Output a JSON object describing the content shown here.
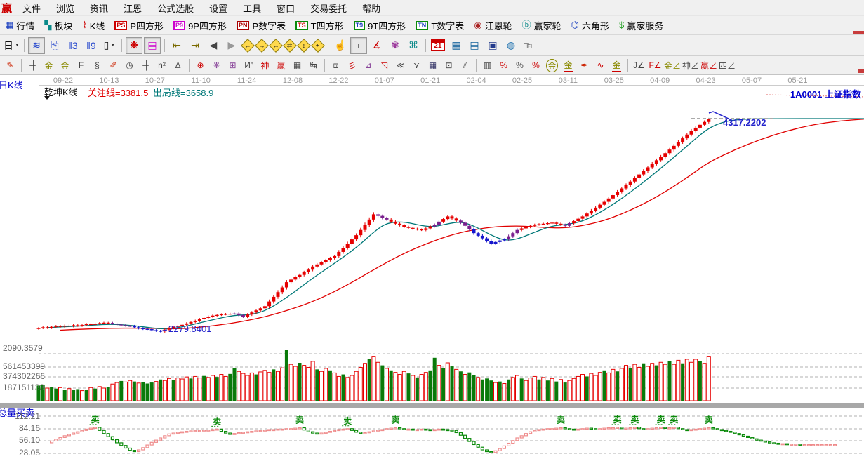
{
  "menu": {
    "logo": "赢",
    "items": [
      {
        "id": "file",
        "label": "文件"
      },
      {
        "id": "browse",
        "label": "浏览"
      },
      {
        "id": "news",
        "label": "资讯"
      },
      {
        "id": "gann",
        "label": "江恩"
      },
      {
        "id": "formula",
        "label": "公式选股"
      },
      {
        "id": "settings",
        "label": "设置"
      },
      {
        "id": "tools",
        "label": "工具"
      },
      {
        "id": "window",
        "label": "窗口"
      },
      {
        "id": "trade",
        "label": "交易委托"
      },
      {
        "id": "help",
        "label": "帮助"
      }
    ]
  },
  "quick_toolbar": {
    "items": [
      {
        "n": "quotes-button",
        "g": "▦",
        "gc": "#1a3fbf",
        "label": "行情"
      },
      {
        "n": "sectors-button",
        "g": "▚",
        "gc": "#0a8a8a",
        "label": "板块"
      },
      {
        "n": "kline-button",
        "g": "⌇",
        "gc": "#cc0000",
        "label": "K线"
      },
      {
        "n": "p-square-button",
        "b": "PS",
        "bc": "#cc0000",
        "label": "P四方形"
      },
      {
        "n": "p9-square-button",
        "b": "P9",
        "bc": "#cc00cc",
        "label": "9P四方形"
      },
      {
        "n": "p-number-button",
        "b": "PN",
        "bc": "#aa0000",
        "label": "P数字表"
      },
      {
        "n": "t-square-button",
        "b": "TS",
        "bc": "#0a8a0a",
        "tc": "#cc0000",
        "label": "T四方形"
      },
      {
        "n": "t9-square-button",
        "b": "T9",
        "bc": "#0a8a0a",
        "tc": "#1a3fbf",
        "label": "9T四方形"
      },
      {
        "n": "t-number-button",
        "b": "TN",
        "bc": "#0a8a0a",
        "tc": "#1a3fbf",
        "label": "T数字表"
      },
      {
        "n": "gann-wheel-button",
        "g": "◉",
        "gc": "#aa2222",
        "label": "江恩轮"
      },
      {
        "n": "winner-wheel-button",
        "g": "ⓑ",
        "gc": "#0a8a8a",
        "label": "赢家轮"
      },
      {
        "n": "hexagon-button",
        "g": "⌬",
        "gc": "#1a3fbf",
        "label": "六角形"
      },
      {
        "n": "winner-service-button",
        "g": "$",
        "gc": "#2aa02a",
        "label": "赢家服务"
      }
    ]
  },
  "icon_toolbar": {
    "items": [
      {
        "n": "period-day-selector",
        "g": "日",
        "c": "#111",
        "dd": 1
      },
      {
        "s": 1
      },
      {
        "n": "zigzag-view-button",
        "g": "≋",
        "c": "#2244cc",
        "pr": 1
      },
      {
        "n": "info-view-button",
        "g": "⎘",
        "c": "#2244cc"
      },
      {
        "n": "bars3-button",
        "g": "‖3",
        "c": "#2244cc"
      },
      {
        "n": "bars9-button",
        "g": "‖9",
        "c": "#2244cc"
      },
      {
        "n": "candle-style-button",
        "g": "▯",
        "c": "#111",
        "dd": 1
      },
      {
        "s": 1
      },
      {
        "n": "chip-distribution-button",
        "g": "❉",
        "c": "#cc0000",
        "pr": 1
      },
      {
        "n": "profile-chart-button",
        "g": "▤",
        "c": "#cc00cc",
        "pr": 1
      },
      {
        "s": 1
      },
      {
        "n": "nav-first-button",
        "g": "⇤",
        "c": "#7a6a00"
      },
      {
        "n": "nav-last-button",
        "g": "⇥",
        "c": "#7a6a00"
      },
      {
        "n": "nav-prev-button",
        "g": "◀",
        "c": "#444"
      },
      {
        "n": "nav-next-button",
        "g": "▶",
        "c": "#999"
      },
      {
        "n": "zoom-left-diamond",
        "dg": "←"
      },
      {
        "n": "zoom-right-diamond",
        "dg": "→"
      },
      {
        "n": "zoom-h-diamond",
        "dg": "↔"
      },
      {
        "n": "zoom-swap-diamond",
        "dg": "⇄"
      },
      {
        "n": "zoom-v-diamond",
        "dg": "↕"
      },
      {
        "n": "zoom-all-diamond",
        "dg": "+"
      },
      {
        "s": 1
      },
      {
        "n": "hand-tool-button",
        "g": "☝",
        "c": "#8a6a4a"
      },
      {
        "n": "crosshair-button",
        "g": "+",
        "c": "#111",
        "pr": 1
      },
      {
        "n": "angle-measure-button",
        "g": "∡",
        "c": "#cc0000"
      },
      {
        "n": "purple-gann-button",
        "g": "✾",
        "c": "#993399"
      },
      {
        "n": "wave-analysis-button",
        "g": "⌘",
        "c": "#0a8a8a"
      },
      {
        "s": 1
      },
      {
        "n": "calendar-button",
        "cal": "21"
      },
      {
        "n": "calculator-button",
        "g": "▦",
        "c": "#16639c"
      },
      {
        "n": "memo-button",
        "g": "▤",
        "c": "#16639c"
      },
      {
        "n": "save-button",
        "g": "▣",
        "c": "#223a8c"
      },
      {
        "n": "web-button",
        "g": "◍",
        "c": "#1a6fae"
      },
      {
        "n": "order-button",
        "g": "℡",
        "c": "#555"
      }
    ]
  },
  "drawing_toolbar": {
    "items": [
      {
        "n": "pen-tool",
        "g": "✎",
        "c": "#cc2200"
      },
      {
        "s": 1
      },
      {
        "n": "tick-ruler-tool",
        "g": "╫",
        "c": "#444"
      },
      {
        "n": "gold-ruler-a-tool",
        "g": "金",
        "c": "#8a8a00"
      },
      {
        "n": "gold-ruler-b-tool",
        "g": "金",
        "c": "#8a8a00"
      },
      {
        "n": "f-ruler-tool",
        "g": "F",
        "c": "#444"
      },
      {
        "n": "spiral-tool",
        "g": "§",
        "c": "#444"
      },
      {
        "n": "marker-pen-tool",
        "g": "✐",
        "c": "#cc2200"
      },
      {
        "n": "time-circle-tool",
        "g": "◷",
        "c": "#444"
      },
      {
        "n": "tick-ruler2-tool",
        "g": "╫",
        "c": "#444"
      },
      {
        "n": "n-squared-tool",
        "g": "n²",
        "c": "#444"
      },
      {
        "n": "mirror-tool",
        "g": "∆",
        "c": "#555"
      },
      {
        "s": 1
      },
      {
        "n": "compass-tool",
        "g": "⊕",
        "c": "#cc0000"
      },
      {
        "n": "star-tool",
        "g": "❋",
        "c": "#884499"
      },
      {
        "n": "star-grid-tool",
        "g": "⊞",
        "c": "#884499"
      },
      {
        "n": "n-quote-tool",
        "g": "И”",
        "c": "#444"
      },
      {
        "n": "shen-tool",
        "g": "神",
        "c": "#cc0000"
      },
      {
        "n": "ying-tool",
        "g": "赢",
        "c": "#cc0000"
      },
      {
        "n": "grid-123-tool",
        "g": "▦",
        "c": "#444"
      },
      {
        "n": "span-arrows-tool",
        "g": "↹",
        "c": "#444"
      },
      {
        "s": 1
      },
      {
        "n": "frame-tool",
        "g": "⧈",
        "c": "#555"
      },
      {
        "n": "gann-fan-tool",
        "g": "彡",
        "c": "#cc0000"
      },
      {
        "n": "fan-box-tool",
        "g": "⊿",
        "c": "#884499"
      },
      {
        "n": "fan-box-red-tool",
        "g": "◹",
        "c": "#cc0000"
      },
      {
        "n": "rays-tool",
        "g": "≪",
        "c": "#444"
      },
      {
        "n": "vee-tool",
        "g": "⋎",
        "c": "#444"
      },
      {
        "n": "dense-grid-tool",
        "g": "▦",
        "c": "#333366"
      },
      {
        "n": "grid-arrow-tool",
        "g": "⊡",
        "c": "#444"
      },
      {
        "n": "parallel-tool",
        "g": "⫽",
        "c": "#444"
      },
      {
        "s": 1
      },
      {
        "n": "scale-chart-tool",
        "g": "▥",
        "c": "#444"
      },
      {
        "n": "percent-line-tool",
        "g": "℅",
        "c": "#cc0000"
      },
      {
        "n": "percent-tool",
        "g": "%",
        "c": "#444"
      },
      {
        "n": "percent-underline-tool",
        "g": "%",
        "c": "#cc0000"
      },
      {
        "n": "gold-circle-tool",
        "g": "金",
        "c": "#8a8a00",
        "cir": 1
      },
      {
        "n": "gold-line-tool",
        "g": "金",
        "c": "#8a8a00",
        "ul": 1
      },
      {
        "n": "flag-pen-tool",
        "g": "✒",
        "c": "#cc2200"
      },
      {
        "n": "gold-wave-tool",
        "g": "∿",
        "c": "#cc0000"
      },
      {
        "n": "gold-line2-tool",
        "g": "金",
        "c": "#8a8a00",
        "ul": 1
      },
      {
        "s": 1
      },
      {
        "n": "j-angle-tool",
        "g": "J∠",
        "c": "#444"
      },
      {
        "n": "f-angle-tool",
        "g": "F∠",
        "c": "#cc0000"
      },
      {
        "n": "gold-angle-tool",
        "g": "金∠",
        "c": "#8a8a00"
      },
      {
        "n": "shen-angle-tool",
        "g": "神∠",
        "c": "#444"
      },
      {
        "n": "ying-angle-tool",
        "g": "赢∠",
        "c": "#cc0000"
      },
      {
        "n": "four-angle-tool",
        "g": "四∠",
        "c": "#444"
      }
    ]
  },
  "chart": {
    "period_label": "日K线",
    "kline_type": "乾坤K线",
    "attention_line": "关注线=3381.5",
    "exit_line": "出局线=3658.9",
    "symbol": "1A0001 上证指数",
    "high_annotation": "4317.2202",
    "low_annotation": "2279.8401",
    "volume_axis_labels": [
      "2090.3579",
      "561453399",
      "374302266",
      "187151133"
    ],
    "indicator_name": "总量买卖",
    "indicator_axis_labels": [
      "112.21",
      "84.16",
      "56.10",
      "28.05"
    ],
    "sell_marker_text": "卖",
    "colors": {
      "up": "#e60000",
      "down": "#1616cc",
      "transition": "#7a1f8e",
      "ma_fast": "#007878",
      "ma_slow": "#e00000",
      "vol_down": "#0a7a0a",
      "ind_up": "#ef8c8c",
      "ind_down": "#0a8a0a",
      "annotation": "#2222cc",
      "date_text": "#999999"
    }
  },
  "chart_data": {
    "type": "candlestick",
    "title": "1A0001 上证指数 日K线 乾坤K线",
    "key_levels": {
      "attention": 3381.5,
      "exit": 3658.9,
      "high": 4317.2202,
      "low": 2279.8401
    },
    "dates": [
      "09-22",
      "10-13",
      "10-27",
      "11-10",
      "11-24",
      "12-08",
      "12-22",
      "01-07",
      "01-21",
      "02-04",
      "02-25",
      "03-11",
      "03-25",
      "04-09",
      "04-23",
      "05-07",
      "05-21"
    ],
    "closes": [
      2310,
      2318,
      2312,
      2322,
      2330,
      2324,
      2334,
      2328,
      2338,
      2332,
      2340,
      2348,
      2342,
      2352,
      2358,
      2362,
      2360,
      2352,
      2344,
      2338,
      2332,
      2330,
      2318,
      2308,
      2302,
      2300,
      2290,
      2284,
      2279,
      2295,
      2310,
      2322,
      2330,
      2342,
      2355,
      2368,
      2380,
      2395,
      2408,
      2420,
      2430,
      2436,
      2442,
      2446,
      2448,
      2450,
      2435,
      2420,
      2440,
      2460,
      2480,
      2500,
      2520,
      2565,
      2610,
      2655,
      2700,
      2750,
      2775,
      2800,
      2820,
      2845,
      2870,
      2900,
      2920,
      2940,
      2960,
      2980,
      3000,
      3040,
      3080,
      3120,
      3160,
      3200,
      3250,
      3300,
      3350,
      3400,
      3385,
      3365,
      3350,
      3330,
      3310,
      3295,
      3280,
      3270,
      3262,
      3255,
      3250,
      3265,
      3285,
      3300,
      3330,
      3355,
      3380,
      3360,
      3340,
      3320,
      3290,
      3255,
      3220,
      3195,
      3170,
      3145,
      3120,
      3135,
      3150,
      3160,
      3190,
      3220,
      3250,
      3265,
      3278,
      3290,
      3300,
      3305,
      3310,
      3315,
      3320,
      3310,
      3300,
      3290,
      3315,
      3335,
      3358,
      3380,
      3408,
      3436,
      3464,
      3492,
      3520,
      3552,
      3584,
      3616,
      3648,
      3680,
      3714,
      3748,
      3782,
      3816,
      3850,
      3884,
      3918,
      3952,
      3986,
      4020,
      4056,
      4092,
      4128,
      4164,
      4200,
      4230,
      4258,
      4285,
      4310
    ],
    "candle_colors": "rrrrrrrrrrrrrrrrrpppppbbbbbbbrrrrrrrrrrrrrrrrppprrrrrrrrrrrrrrrrrrrrrrrrrrrrrrppprrrrrrrrrrpprrrrpppbbbbbbbbppprrrrrrrrrrpprrrrrrrrrrrrrrrrrrrrrrrrrrrrrrrr",
    "volumes": [
      -30,
      -32,
      25,
      -27,
      -24,
      26,
      -22,
      24,
      -21,
      -23,
      20,
      -22,
      26,
      -24,
      28,
      25,
      -27,
      33,
      36,
      -39,
      37,
      40,
      -38,
      35,
      -37,
      -34,
      -36,
      38,
      -42,
      40,
      44,
      -41,
      45,
      43,
      47,
      -44,
      48,
      45,
      -49,
      46,
      50,
      -47,
      52,
      48,
      -53,
      -64,
      58,
      54,
      50,
      55,
      -52,
      57,
      60,
      56,
      -62,
      58,
      65,
      -100,
      72,
      68,
      -75,
      70,
      66,
      78,
      -62,
      58,
      64,
      -60,
      55,
      48,
      -52,
      46,
      50,
      58,
      66,
      74,
      -82,
      88,
      76,
      -70,
      64,
      -60,
      56,
      52,
      58,
      -54,
      50,
      -46,
      52,
      56,
      -60,
      -85,
      70,
      -64,
      75,
      -68,
      62,
      -58,
      52,
      -56,
      -50,
      46,
      -42,
      -44,
      -40,
      36,
      -38,
      34,
      -42,
      46,
      50,
      -44,
      40,
      45,
      48,
      -42,
      46,
      -40,
      44,
      -38,
      42,
      -36,
      40,
      44,
      48,
      52,
      -48,
      54,
      50,
      56,
      -60,
      55,
      62,
      -58,
      64,
      70,
      -64,
      72,
      66,
      -74,
      68,
      74,
      -70,
      76,
      72,
      -78,
      72,
      80,
      -74,
      82,
      76,
      82,
      -78,
      74,
      88
    ],
    "ma_fast_points": [
      [
        2,
        2315
      ],
      [
        10,
        2330
      ],
      [
        16,
        2350
      ],
      [
        22,
        2335
      ],
      [
        28,
        2300
      ],
      [
        32,
        2310
      ],
      [
        40,
        2390
      ],
      [
        45,
        2435
      ],
      [
        48,
        2435
      ],
      [
        52,
        2470
      ],
      [
        57,
        2600
      ],
      [
        63,
        2790
      ],
      [
        68,
        2930
      ],
      [
        73,
        3080
      ],
      [
        77,
        3230
      ],
      [
        80,
        3320
      ],
      [
        84,
        3330
      ],
      [
        88,
        3290
      ],
      [
        91,
        3280
      ],
      [
        94,
        3310
      ],
      [
        97,
        3330
      ],
      [
        100,
        3290
      ],
      [
        104,
        3200
      ],
      [
        107,
        3150
      ],
      [
        110,
        3160
      ],
      [
        114,
        3230
      ],
      [
        118,
        3290
      ],
      [
        121,
        3300
      ],
      [
        125,
        3330
      ],
      [
        130,
        3440
      ],
      [
        135,
        3580
      ],
      [
        140,
        3740
      ],
      [
        145,
        3910
      ],
      [
        150,
        4090
      ],
      [
        154,
        4230
      ],
      [
        158,
        4295
      ],
      [
        162,
        4312
      ],
      [
        166,
        4317
      ],
      [
        190,
        4317
      ]
    ],
    "ma_slow_points": [
      [
        5,
        2290
      ],
      [
        15,
        2310
      ],
      [
        25,
        2310
      ],
      [
        32,
        2300
      ],
      [
        40,
        2330
      ],
      [
        48,
        2380
      ],
      [
        55,
        2450
      ],
      [
        63,
        2560
      ],
      [
        70,
        2700
      ],
      [
        77,
        2870
      ],
      [
        84,
        3030
      ],
      [
        91,
        3150
      ],
      [
        97,
        3230
      ],
      [
        104,
        3280
      ],
      [
        110,
        3290
      ],
      [
        114,
        3280
      ],
      [
        118,
        3270
      ],
      [
        121,
        3270
      ],
      [
        125,
        3290
      ],
      [
        130,
        3340
      ],
      [
        135,
        3420
      ],
      [
        140,
        3520
      ],
      [
        145,
        3640
      ],
      [
        150,
        3780
      ],
      [
        154,
        3900
      ],
      [
        160,
        4020
      ],
      [
        166,
        4120
      ],
      [
        172,
        4200
      ],
      [
        178,
        4260
      ],
      [
        184,
        4295
      ],
      [
        190,
        4312
      ]
    ],
    "indicator": {
      "name": "总量买卖",
      "start_index": 2,
      "axis": [
        112.21,
        84.16,
        56.1,
        28.05
      ],
      "values": [
        52,
        56,
        60,
        64,
        68,
        71,
        74,
        77,
        80,
        83,
        85,
        87,
        80,
        73,
        66,
        59,
        52,
        46,
        40,
        35,
        32,
        36,
        41,
        47,
        53,
        58,
        63,
        68,
        72,
        74,
        76,
        77,
        78,
        79,
        80,
        80,
        81,
        81,
        82,
        83,
        78,
        74,
        71,
        73,
        75,
        76,
        77,
        78,
        79,
        80,
        81,
        82,
        82,
        83,
        83,
        84,
        84,
        85,
        86,
        81,
        77,
        74,
        72,
        74,
        76,
        78,
        80,
        82,
        83,
        84,
        80,
        76,
        73,
        75,
        77,
        79,
        81,
        82,
        84,
        85,
        86,
        84,
        82,
        83,
        81,
        82,
        83,
        82,
        81,
        82,
        83,
        82,
        81,
        80,
        75,
        69,
        62,
        55,
        48,
        42,
        36,
        32,
        30,
        34,
        39,
        45,
        51,
        57,
        63,
        68,
        73,
        77,
        80,
        82,
        83,
        84,
        84,
        85,
        86,
        84,
        83,
        82,
        83,
        84,
        85,
        84,
        83,
        84,
        85,
        86,
        86,
        87,
        84,
        85,
        86,
        87,
        84,
        83,
        84,
        85,
        86,
        87,
        85,
        86,
        87,
        84,
        82,
        81,
        82,
        83,
        84,
        85,
        86,
        84,
        82,
        80,
        78,
        76,
        73,
        70,
        67,
        64,
        61,
        58,
        56,
        54,
        52,
        51,
        50,
        50,
        49,
        49,
        49,
        48,
        48,
        48,
        48,
        48,
        48,
        48,
        48,
        48
      ],
      "sell_indices": [
        13,
        41,
        60,
        71,
        82,
        120,
        133,
        137,
        143,
        146,
        154
      ]
    },
    "volume_axis": [
      "2090.3579",
      "561453399",
      "374302266",
      "187151133"
    ]
  }
}
